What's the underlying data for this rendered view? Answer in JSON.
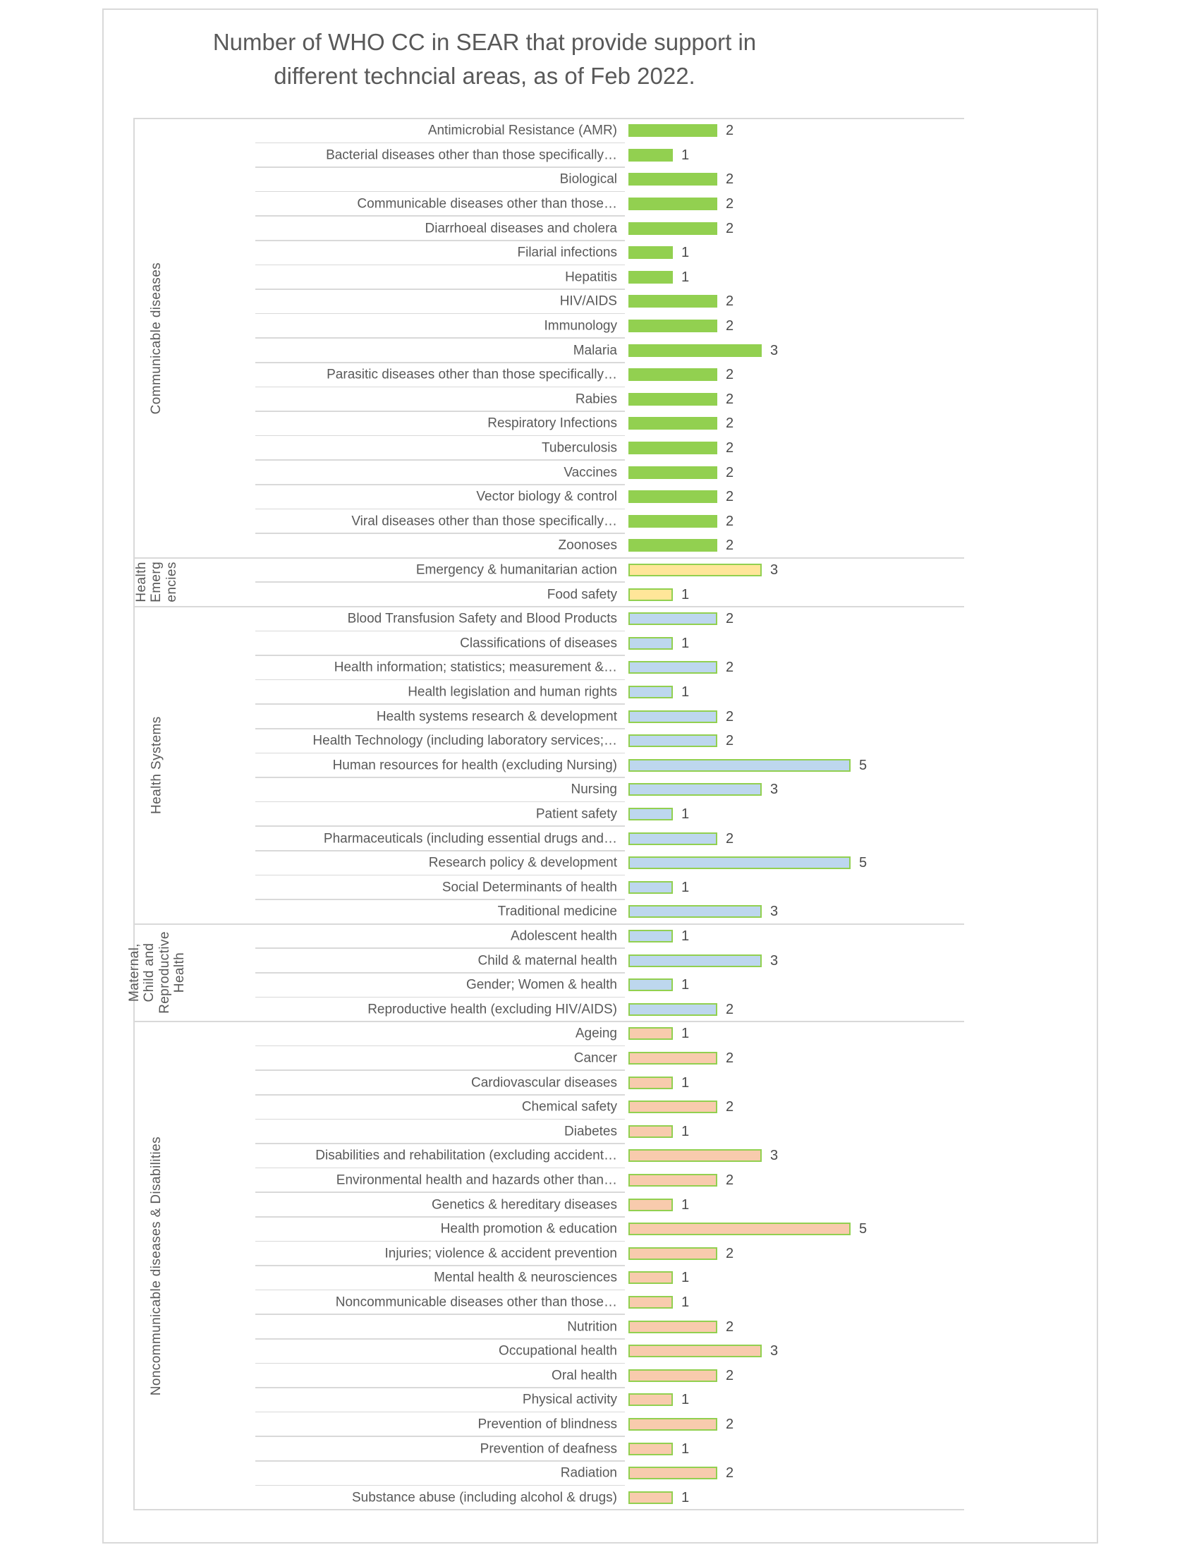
{
  "title": "Number of WHO CC in SEAR that provide support in different techncial areas, as of Feb 2022.",
  "title_line1": "Number of WHO CC in SEAR that provide support in",
  "title_line2": "different techncial areas, as of Feb 2022.",
  "colors": {
    "text": "#595959",
    "value_text": "#4a4a4a",
    "grid": "#d9d9d9",
    "green": "#92D050",
    "yellow": "#FFE699",
    "blue": "#BDD7EE",
    "orange": "#F8CBAD"
  },
  "chart_data": {
    "type": "bar",
    "orientation": "horizontal",
    "xlim": [
      0,
      6
    ],
    "grid": "category separators only",
    "value_labels": "outside end",
    "groups": [
      {
        "name": "Communicable diseases",
        "label_display": "Communicable diseases",
        "fill": "#92D050",
        "border": "#92D050",
        "items": [
          {
            "label": "Antimicrobial Resistance (AMR)",
            "value": 2
          },
          {
            "label": "Bacterial diseases other than those specifically…",
            "value": 1
          },
          {
            "label": "Biological",
            "value": 2
          },
          {
            "label": "Communicable diseases other than those…",
            "value": 2
          },
          {
            "label": "Diarrhoeal diseases and cholera",
            "value": 2
          },
          {
            "label": "Filarial infections",
            "value": 1
          },
          {
            "label": "Hepatitis",
            "value": 1
          },
          {
            "label": "HIV/AIDS",
            "value": 2
          },
          {
            "label": "Immunology",
            "value": 2
          },
          {
            "label": "Malaria",
            "value": 3
          },
          {
            "label": "Parasitic diseases other than those specifically…",
            "value": 2
          },
          {
            "label": "Rabies",
            "value": 2
          },
          {
            "label": "Respiratory Infections",
            "value": 2
          },
          {
            "label": "Tuberculosis",
            "value": 2
          },
          {
            "label": "Vaccines",
            "value": 2
          },
          {
            "label": "Vector biology & control",
            "value": 2
          },
          {
            "label": "Viral diseases other than those specifically…",
            "value": 2
          },
          {
            "label": "Zoonoses",
            "value": 2
          }
        ]
      },
      {
        "name": "Health Emergencies",
        "label_display": "Health\nEmerg\nencies",
        "fill": "#FFE699",
        "border": "#92D050",
        "items": [
          {
            "label": "Emergency & humanitarian action",
            "value": 3
          },
          {
            "label": "Food safety",
            "value": 1
          }
        ]
      },
      {
        "name": "Health Systems",
        "label_display": "Health Systems",
        "fill": "#BDD7EE",
        "border": "#92D050",
        "items": [
          {
            "label": "Blood Transfusion Safety and Blood Products",
            "value": 2
          },
          {
            "label": "Classifications of diseases",
            "value": 1
          },
          {
            "label": "Health information; statistics; measurement &…",
            "value": 2
          },
          {
            "label": "Health legislation and human rights",
            "value": 1
          },
          {
            "label": "Health systems research & development",
            "value": 2
          },
          {
            "label": "Health Technology (including laboratory services;…",
            "value": 2
          },
          {
            "label": "Human resources for health (excluding Nursing)",
            "value": 5
          },
          {
            "label": "Nursing",
            "value": 3
          },
          {
            "label": "Patient safety",
            "value": 1
          },
          {
            "label": "Pharmaceuticals (including essential drugs and…",
            "value": 2
          },
          {
            "label": "Research policy & development",
            "value": 5
          },
          {
            "label": "Social Determinants of health",
            "value": 1
          },
          {
            "label": "Traditional medicine",
            "value": 3
          }
        ]
      },
      {
        "name": "Maternal, Child and Reproductive Health",
        "label_display": "Maternal,\nChild and\nReproductive\nHealth",
        "fill": "#BDD7EE",
        "border": "#92D050",
        "items": [
          {
            "label": "Adolescent health",
            "value": 1
          },
          {
            "label": "Child & maternal health",
            "value": 3
          },
          {
            "label": "Gender; Women & health",
            "value": 1
          },
          {
            "label": "Reproductive health (excluding HIV/AIDS)",
            "value": 2
          }
        ]
      },
      {
        "name": "Noncommunicable diseases & Disabilities",
        "label_display": "Noncommunicable diseases & Disabilities",
        "fill": "#F8CBAD",
        "border": "#92D050",
        "items": [
          {
            "label": "Ageing",
            "value": 1
          },
          {
            "label": "Cancer",
            "value": 2
          },
          {
            "label": "Cardiovascular diseases",
            "value": 1
          },
          {
            "label": "Chemical safety",
            "value": 2
          },
          {
            "label": "Diabetes",
            "value": 1
          },
          {
            "label": "Disabilities and rehabilitation (excluding accident…",
            "value": 3
          },
          {
            "label": "Environmental health and hazards other than…",
            "value": 2
          },
          {
            "label": "Genetics & hereditary diseases",
            "value": 1
          },
          {
            "label": "Health promotion & education",
            "value": 5
          },
          {
            "label": "Injuries; violence & accident prevention",
            "value": 2
          },
          {
            "label": "Mental health & neurosciences",
            "value": 1
          },
          {
            "label": "Noncommunicable diseases other than those…",
            "value": 1
          },
          {
            "label": "Nutrition",
            "value": 2
          },
          {
            "label": "Occupational health",
            "value": 3
          },
          {
            "label": "Oral health",
            "value": 2
          },
          {
            "label": "Physical activity",
            "value": 1
          },
          {
            "label": "Prevention of blindness",
            "value": 2
          },
          {
            "label": "Prevention of deafness",
            "value": 1
          },
          {
            "label": "Radiation",
            "value": 2
          },
          {
            "label": "Substance abuse (including alcohol & drugs)",
            "value": 1
          }
        ]
      }
    ]
  }
}
